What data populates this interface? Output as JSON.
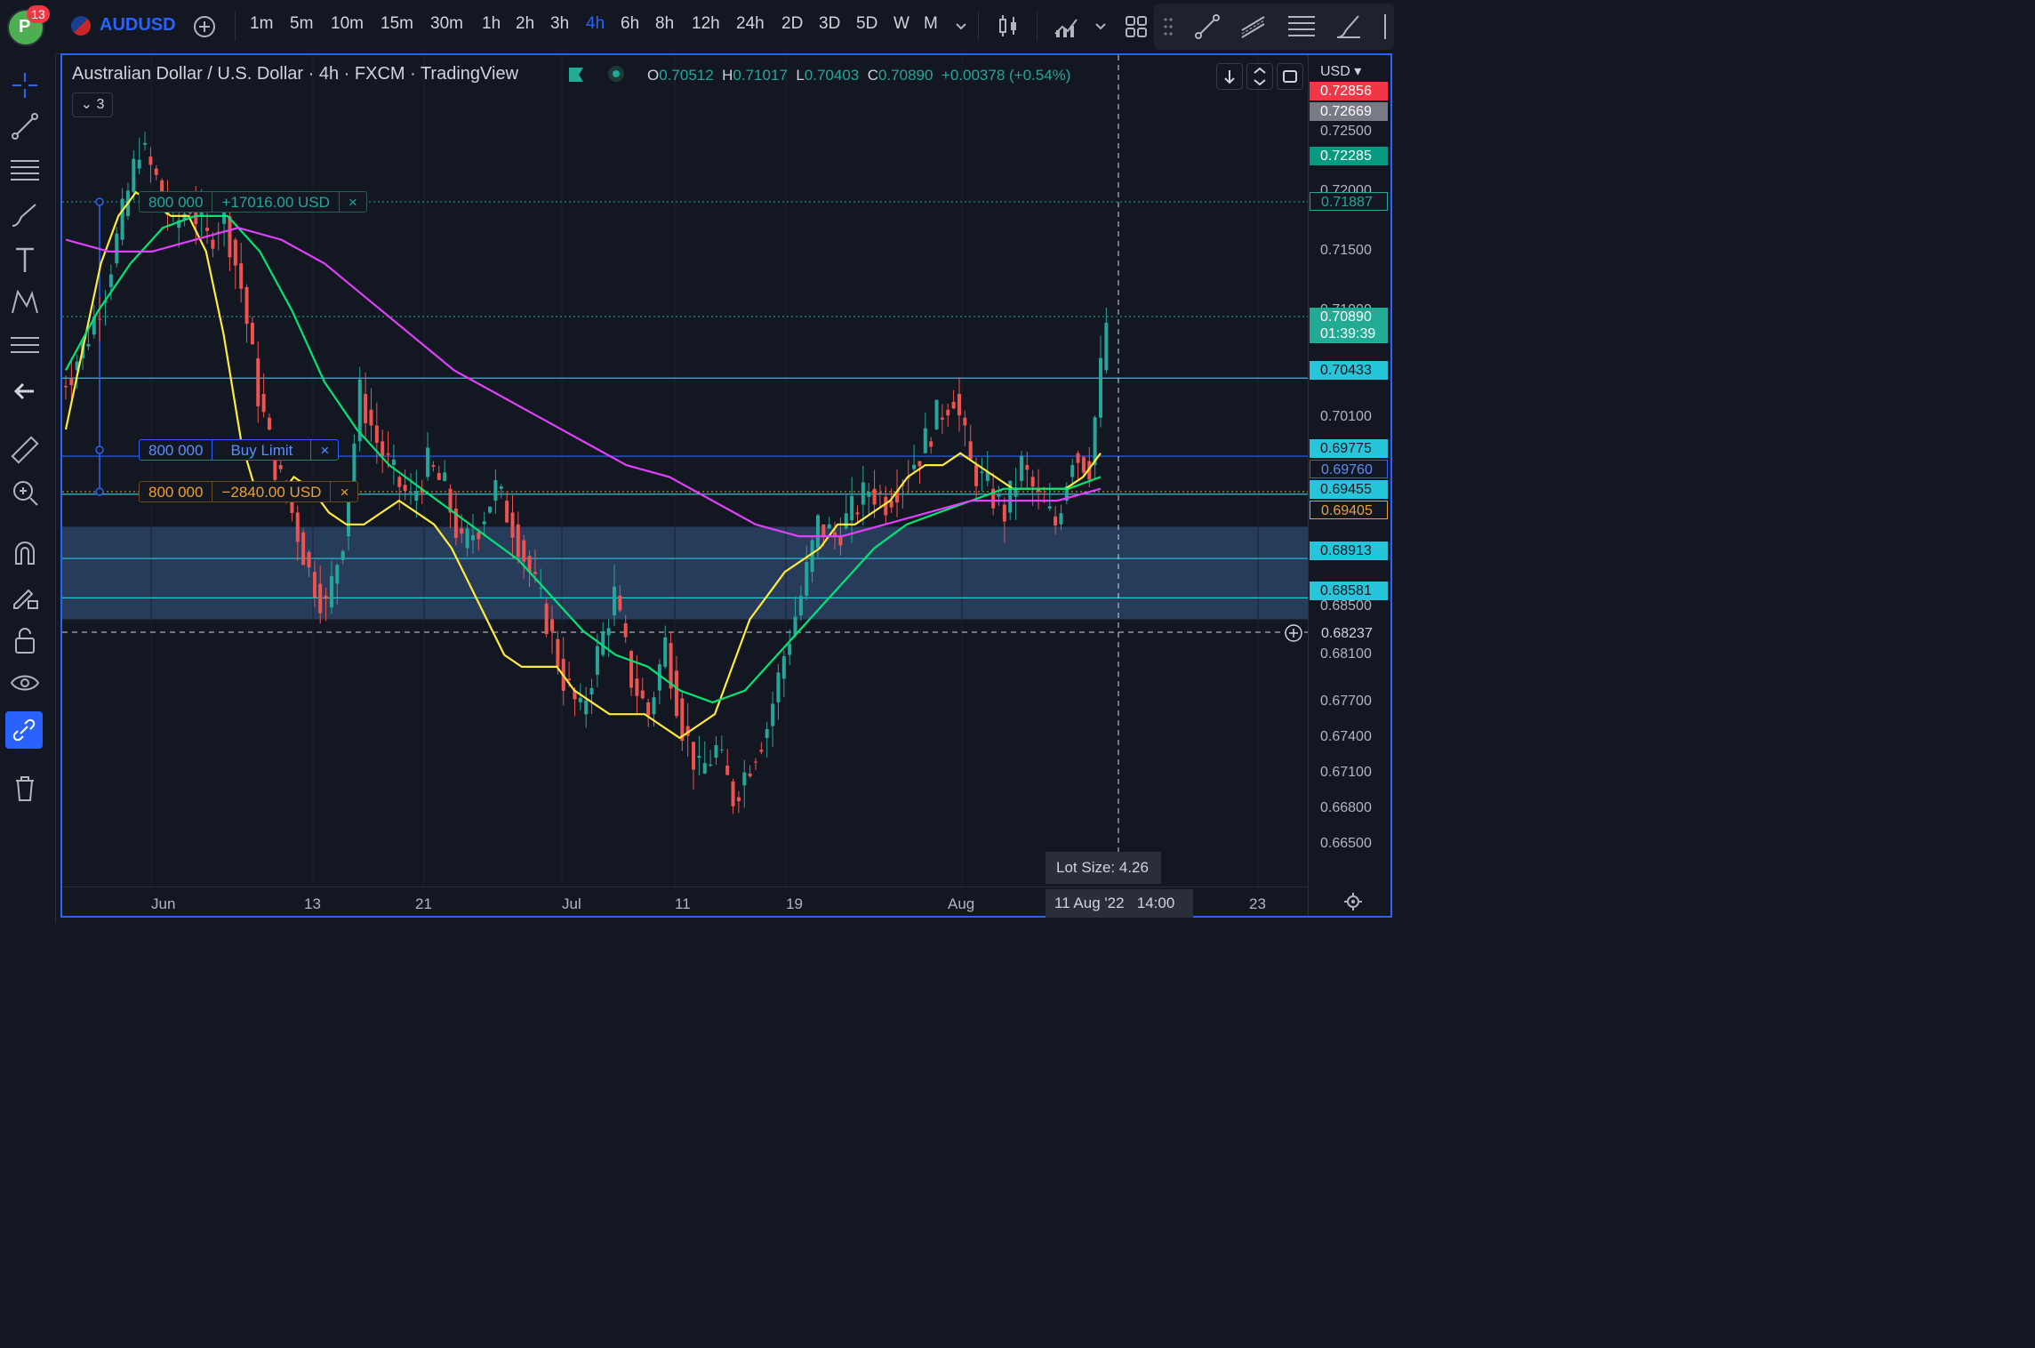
{
  "topbar": {
    "notification_count": "13",
    "avatar_letter": "P",
    "symbol": "AUDUSD",
    "timeframes": [
      "1m",
      "5m",
      "10m",
      "15m",
      "30m",
      "1h",
      "2h",
      "3h",
      "4h",
      "6h",
      "8h",
      "12h",
      "24h",
      "2D",
      "3D",
      "5D",
      "W",
      "M"
    ],
    "active_timeframe": "4h"
  },
  "legend": {
    "title": "Australian Dollar / U.S. Dollar · 4h · FXCM · TradingView",
    "open_label": "O",
    "open": "0.70512",
    "high_label": "H",
    "high": "0.71017",
    "low_label": "L",
    "low": "0.70403",
    "close_label": "C",
    "close": "0.70890",
    "change": "+0.00378 (+0.54%)",
    "indicators_count": "3"
  },
  "price_axis": {
    "currency": "USD",
    "ticks": [
      "0.72500",
      "0.72000",
      "0.71500",
      "0.71000",
      "0.70500",
      "0.70100",
      "0.68500",
      "0.68100",
      "0.67700",
      "0.67400",
      "0.67100",
      "0.66800",
      "0.66500"
    ],
    "labels": [
      {
        "value": "0.72856",
        "color": "#f23645"
      },
      {
        "value": "0.72669",
        "color": "#787b86"
      },
      {
        "value": "0.72285",
        "color": "#089981"
      },
      {
        "value": "0.71887",
        "color": "#131722"
      },
      {
        "value": "0.70890",
        "color": "#22ab94"
      },
      {
        "value": "01:39:39",
        "color": "#22ab94"
      },
      {
        "value": "0.70433",
        "color": "#26c6da"
      },
      {
        "value": "0.69775",
        "color": "#26c6da"
      },
      {
        "value": "0.69760",
        "color": "#131722"
      },
      {
        "value": "0.69455",
        "color": "#26c6da"
      },
      {
        "value": "0.69405",
        "color": "#131722"
      },
      {
        "value": "0.68913",
        "color": "#26c6da"
      },
      {
        "value": "0.68581",
        "color": "#26c6da"
      },
      {
        "value": "0.68237",
        "color": "#131722"
      }
    ]
  },
  "date_axis": {
    "ticks": [
      "Jun",
      "13",
      "21",
      "Jul",
      "11",
      "19",
      "Aug",
      "23"
    ],
    "crosshair_date": "11 Aug '22",
    "crosshair_time": "14:00"
  },
  "orders": {
    "take_profit": {
      "qty": "800 000",
      "pnl": "+17016.00 USD",
      "close": "×"
    },
    "buy_limit": {
      "qty": "800 000",
      "label": "Buy Limit",
      "close": "×"
    },
    "stop_loss": {
      "qty": "800 000",
      "pnl": "−2840.00 USD",
      "close": "×"
    }
  },
  "lot_size": "Lot Size: 4.26",
  "chart_data": {
    "type": "candlestick",
    "symbol": "AUDUSD",
    "interval": "4h",
    "ylim": [
      0.665,
      0.729
    ],
    "last_close": 0.7089,
    "horizontal_levels": [
      0.70433,
      0.69775,
      0.69455,
      0.68913,
      0.68581
    ],
    "zone": [
      0.684,
      0.6918
    ],
    "series": [
      {
        "name": "close",
        "color": "#26a69a",
        "values": [
          0.705,
          0.708,
          0.712,
          0.718,
          0.724,
          0.721,
          0.717,
          0.719,
          0.716,
          0.718,
          0.712,
          0.703,
          0.697,
          0.693,
          0.688,
          0.685,
          0.691,
          0.703,
          0.699,
          0.696,
          0.694,
          0.697,
          0.695,
          0.69,
          0.692,
          0.695,
          0.692,
          0.688,
          0.684,
          0.679,
          0.676,
          0.681,
          0.686,
          0.679,
          0.676,
          0.682,
          0.675,
          0.671,
          0.673,
          0.669,
          0.672,
          0.675,
          0.681,
          0.686,
          0.692,
          0.691,
          0.693,
          0.695,
          0.694,
          0.696,
          0.698,
          0.701,
          0.703,
          0.697,
          0.695,
          0.693,
          0.697,
          0.694,
          0.692,
          0.698,
          0.697,
          0.709
        ]
      },
      {
        "name": "ma-fast",
        "color": "#ffeb3b",
        "values": [
          0.7,
          0.707,
          0.714,
          0.718,
          0.72,
          0.719,
          0.718,
          0.718,
          0.715,
          0.708,
          0.699,
          0.694,
          0.694,
          0.696,
          0.695,
          0.693,
          0.692,
          0.692,
          0.693,
          0.694,
          0.693,
          0.692,
          0.69,
          0.687,
          0.684,
          0.681,
          0.68,
          0.68,
          0.68,
          0.678,
          0.677,
          0.676,
          0.676,
          0.676,
          0.675,
          0.674,
          0.675,
          0.676,
          0.68,
          0.684,
          0.686,
          0.688,
          0.689,
          0.69,
          0.692,
          0.692,
          0.693,
          0.694,
          0.696,
          0.697,
          0.697,
          0.698,
          0.697,
          0.696,
          0.695,
          0.695,
          0.695,
          0.695,
          0.696,
          0.698
        ]
      },
      {
        "name": "ma-mid",
        "color": "#00e676",
        "values": [
          0.705,
          0.71,
          0.714,
          0.717,
          0.718,
          0.718,
          0.715,
          0.71,
          0.704,
          0.7,
          0.697,
          0.695,
          0.693,
          0.691,
          0.689,
          0.686,
          0.683,
          0.681,
          0.68,
          0.678,
          0.677,
          0.678,
          0.681,
          0.684,
          0.687,
          0.69,
          0.692,
          0.693,
          0.694,
          0.695,
          0.695,
          0.695,
          0.696
        ]
      },
      {
        "name": "ma-slow",
        "color": "#e040fb",
        "values": [
          0.716,
          0.715,
          0.715,
          0.716,
          0.717,
          0.716,
          0.714,
          0.711,
          0.708,
          0.705,
          0.703,
          0.701,
          0.699,
          0.697,
          0.696,
          0.694,
          0.692,
          0.691,
          0.691,
          0.692,
          0.693,
          0.694,
          0.694,
          0.694,
          0.695
        ]
      }
    ]
  }
}
